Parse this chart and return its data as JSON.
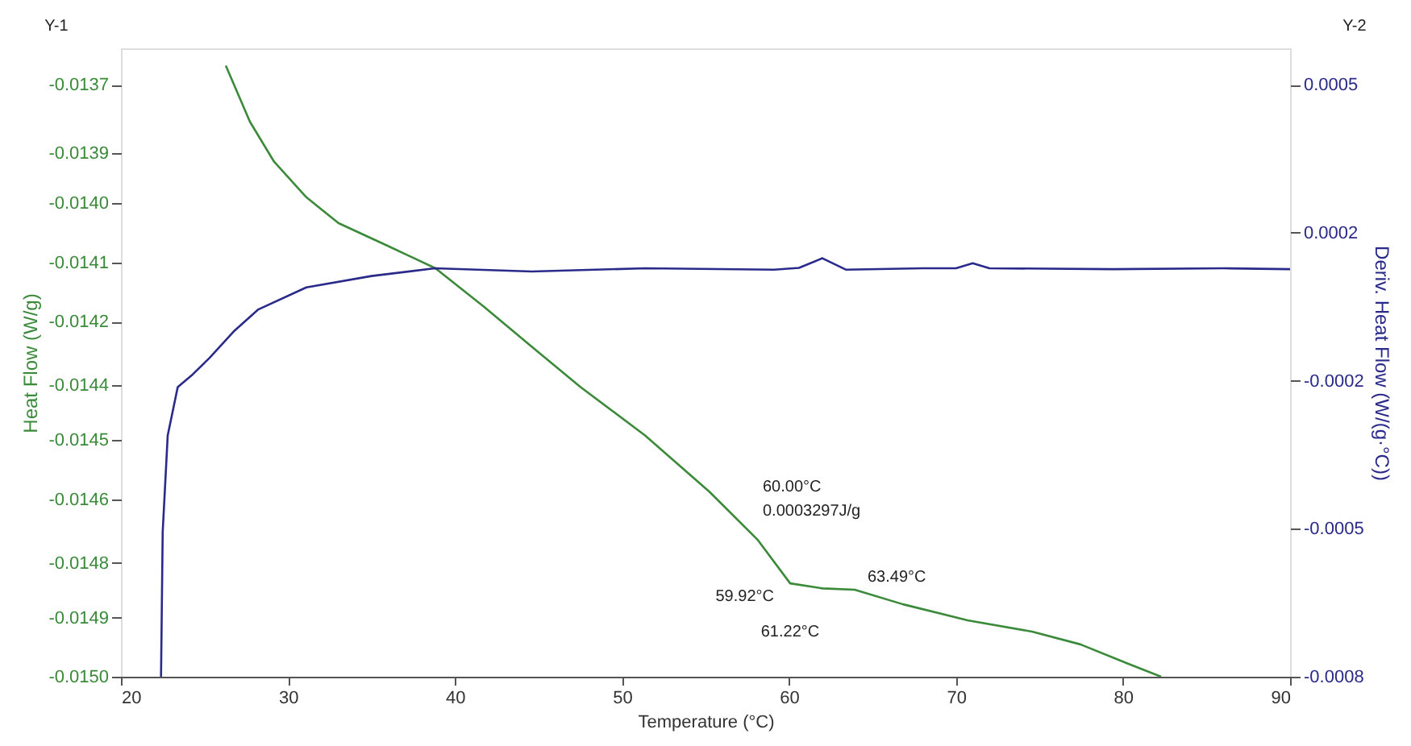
{
  "chart_data": {
    "type": "line",
    "xlabel": "Temperature (°C)",
    "ylabel": "Heat Flow (W/g)",
    "y2label": "Deriv. Heat Flow (W/(g·°C))",
    "xlim": [
      20,
      90
    ],
    "xticks": [
      20,
      30,
      40,
      50,
      60,
      70,
      80,
      90
    ],
    "ylim": [
      -0.015,
      -0.01362
    ],
    "yticks": [
      {
        "value": -0.0137,
        "label": "-0.0137"
      },
      {
        "value": -0.01385,
        "label": "-0.0139"
      },
      {
        "value": -0.01396,
        "label": "-0.0140"
      },
      {
        "value": -0.01409,
        "label": "-0.0141"
      },
      {
        "value": -0.01422,
        "label": "-0.0142"
      },
      {
        "value": -0.01436,
        "label": "-0.0144"
      },
      {
        "value": -0.01448,
        "label": "-0.0145"
      },
      {
        "value": -0.01461,
        "label": "-0.0146"
      },
      {
        "value": -0.01475,
        "label": "-0.0148"
      },
      {
        "value": -0.01487,
        "label": "-0.0149"
      },
      {
        "value": -0.015,
        "label": "-0.0150"
      }
    ],
    "y2lim": [
      -0.0008,
      0.00058
    ],
    "y2ticks": [
      {
        "value": 0.0005,
        "label": "0.0005"
      },
      {
        "value": 0.000175,
        "label": "0.0002"
      },
      {
        "value": -0.00015,
        "label": "-0.0002"
      },
      {
        "value": -0.000475,
        "label": "-0.0005"
      },
      {
        "value": -0.0008,
        "label": "-0.0008"
      }
    ],
    "series": [
      {
        "color": "#3a8a3a",
        "x": [
          26.28,
          27.72,
          29.17,
          31.1,
          33.03,
          35.93,
          38.83,
          41.72,
          44.62,
          47.52,
          51.38,
          55.24,
          58.14,
          60.07,
          62.0,
          63.93,
          66.83,
          70.69,
          74.55,
          77.45,
          80.35,
          82.28
        ],
        "values": [
          -0.013658,
          -0.013781,
          -0.013869,
          -0.013947,
          -0.014004,
          -0.014053,
          -0.014103,
          -0.014187,
          -0.014276,
          -0.014364,
          -0.01447,
          -0.014594,
          -0.0147,
          -0.014795,
          -0.014806,
          -0.014809,
          -0.014841,
          -0.014876,
          -0.014901,
          -0.014929,
          -0.014972,
          -0.015
        ]
      },
      {
        "color": "#2a2a8a",
        "axis": "y2",
        "x": [
          22.4,
          22.5,
          22.8,
          23.4,
          24.3,
          25.3,
          26.8,
          28.2,
          31.1,
          35.0,
          38.8,
          44.6,
          51.4,
          59.1,
          60.6,
          62.0,
          63.4,
          68.0,
          70.0,
          71.0,
          72.0,
          79.4,
          86.0,
          90.0
        ],
        "values": [
          -0.0008,
          -0.000482,
          -0.00027,
          -0.000164,
          -0.000136,
          -0.0001,
          -4e-05,
          6e-06,
          5.5e-05,
          8e-05,
          9.7e-05,
          9e-05,
          9.7e-05,
          9.4e-05,
          9.8e-05,
          0.000119,
          9.4e-05,
          9.7e-05,
          9.7e-05,
          0.000108,
          9.7e-05,
          9.5e-05,
          9.7e-05,
          9.5e-05
        ]
      }
    ],
    "annotations": [
      "Y-1",
      "Y-2",
      "60.00°C",
      "0.0003297J/g",
      "59.92°C",
      "61.22°C",
      "63.49°C"
    ],
    "grid": false,
    "line_style": "solid",
    "marker": "none"
  }
}
